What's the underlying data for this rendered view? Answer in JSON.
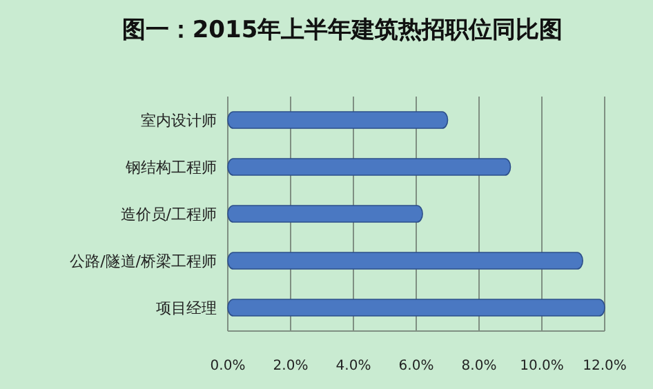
{
  "chart_data": {
    "type": "bar",
    "orientation": "horizontal",
    "title": "图一：2015年上半年建筑热招职位同比图",
    "categories": [
      "室内设计师",
      "钢结构工程师",
      "造价员/工程师",
      "公路/隧道/桥梁工程师",
      "项目经理"
    ],
    "values": [
      7.0,
      9.0,
      6.2,
      11.3,
      12.0
    ],
    "color": "#4a78c2",
    "xlim": [
      0,
      12
    ],
    "xticks": [
      {
        "value": 0,
        "label": "0.0%"
      },
      {
        "value": 2,
        "label": "2.0%"
      },
      {
        "value": 4,
        "label": "4.0%"
      },
      {
        "value": 6,
        "label": "6.0%"
      },
      {
        "value": 8,
        "label": "8.0%"
      },
      {
        "value": 10,
        "label": "10.0%"
      },
      {
        "value": 12,
        "label": "12.0%"
      }
    ],
    "grid": "x"
  }
}
